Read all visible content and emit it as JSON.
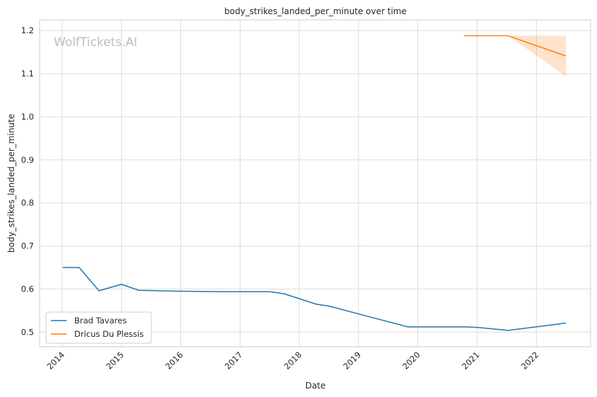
{
  "chart_data": {
    "type": "line",
    "title": "body_strikes_landed_per_minute over time",
    "xlabel": "Date",
    "ylabel": "body_strikes_landed_per_minute",
    "watermark": "WolfTickets.AI",
    "x_ticks": [
      "2014",
      "2015",
      "2016",
      "2017",
      "2018",
      "2019",
      "2020",
      "2021",
      "2022"
    ],
    "y_ticks": [
      "0.5",
      "0.6",
      "0.7",
      "0.8",
      "0.9",
      "1.0",
      "1.1",
      "1.2"
    ],
    "xlim": [
      "2013-08-15",
      "2022-12-01"
    ],
    "ylim": [
      0.466,
      1.225
    ],
    "grid": true,
    "legend_position": "lower-left",
    "series": [
      {
        "name": "Brad Tavares",
        "color": "#1f77b4",
        "points": [
          {
            "x": "2014-01-04",
            "y": 0.65
          },
          {
            "x": "2014-04-16",
            "y": 0.65
          },
          {
            "x": "2014-08-16",
            "y": 0.596
          },
          {
            "x": "2015-01-01",
            "y": 0.611
          },
          {
            "x": "2015-04-18",
            "y": 0.597
          },
          {
            "x": "2016-01-01",
            "y": 0.595
          },
          {
            "x": "2016-08-20",
            "y": 0.594
          },
          {
            "x": "2017-07-01",
            "y": 0.594
          },
          {
            "x": "2017-09-30",
            "y": 0.589
          },
          {
            "x": "2018-04-14",
            "y": 0.565
          },
          {
            "x": "2018-07-07",
            "y": 0.56
          },
          {
            "x": "2019-11-02",
            "y": 0.512
          },
          {
            "x": "2020-10-24",
            "y": 0.512
          },
          {
            "x": "2021-01-01",
            "y": 0.511
          },
          {
            "x": "2021-07-10",
            "y": 0.504
          },
          {
            "x": "2022-07-02",
            "y": 0.521
          }
        ]
      },
      {
        "name": "Dricus Du Plessis",
        "color": "#ff7f0e",
        "points": [
          {
            "x": "2020-10-11",
            "y": 1.188
          },
          {
            "x": "2021-07-10",
            "y": 1.188
          },
          {
            "x": "2022-07-02",
            "y": 1.141
          }
        ],
        "band": [
          {
            "x": "2021-07-10",
            "low": 1.188,
            "high": 1.188
          },
          {
            "x": "2022-07-02",
            "low": 1.094,
            "high": 1.188
          }
        ]
      }
    ]
  }
}
